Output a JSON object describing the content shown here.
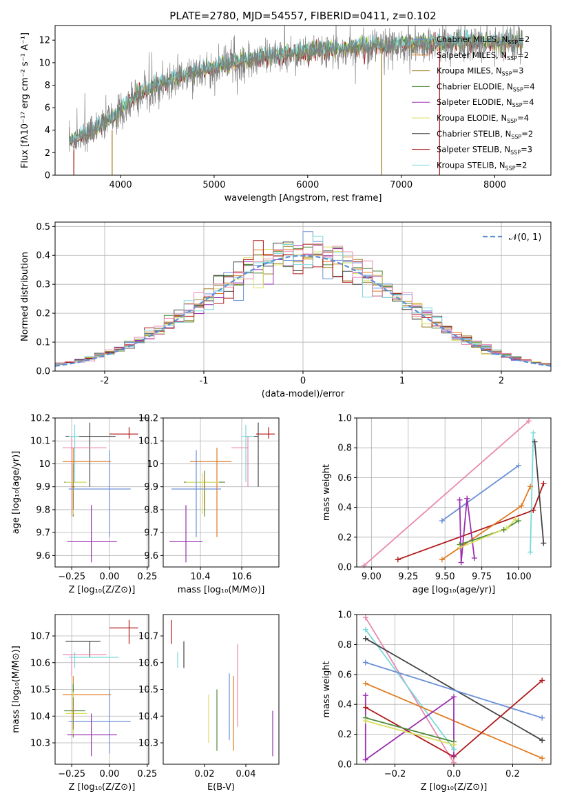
{
  "colors": {
    "chab_miles": "#6a8fd8",
    "salp_miles": "#e07b20",
    "krou_miles": "#9a7a18",
    "chab_elodie": "#4e8a3a",
    "salp_elodie": "#9a30b0",
    "krou_elodie": "#d8e060",
    "chab_stelib": "#444444",
    "salp_stelib": "#b01818",
    "krou_stelib": "#7ad8dc",
    "pink": "#e888b0",
    "gaussian": "#5b8fd9",
    "data": "#7f7f7f",
    "grid": "#b0b0b0"
  },
  "chart_data": [
    {
      "id": "spectrum",
      "type": "line",
      "title": "PLATE=2780, MJD=54557, FIBERID=0411, z=0.102",
      "xlabel": "wavelength [Angstrom, rest frame]",
      "ylabel": "Flux [fλ10⁻¹⁷ erg cm⁻² s⁻¹ A⁻¹]",
      "xlim": [
        3300,
        8600
      ],
      "ylim": [
        0,
        13.3
      ],
      "xticks": [
        4000,
        5000,
        6000,
        7000,
        8000
      ],
      "yticks": [
        0,
        2,
        4,
        6,
        8,
        10,
        12
      ],
      "grid": false,
      "legend_position": "upper-right",
      "legend": [
        {
          "label": "Chabrier MILES, N",
          "sub": "SSP",
          "tail": "=2",
          "color_key": "chab_miles"
        },
        {
          "label": "Salpeter MILES, N",
          "sub": "SSP",
          "tail": "=2",
          "color_key": "salp_miles"
        },
        {
          "label": "Kroupa MILES, N",
          "sub": "SSP",
          "tail": "=3",
          "color_key": "krou_miles"
        },
        {
          "label": "Chabrier ELODIE, N",
          "sub": "SSP",
          "tail": "=4",
          "color_key": "chab_elodie"
        },
        {
          "label": "Salpeter ELODIE, N",
          "sub": "SSP",
          "tail": "=4",
          "color_key": "salp_elodie"
        },
        {
          "label": "Kroupa ELODIE, N",
          "sub": "SSP",
          "tail": "=4",
          "color_key": "krou_elodie"
        },
        {
          "label": "Chabrier STELIB, N",
          "sub": "SSP",
          "tail": "=2",
          "color_key": "chab_stelib"
        },
        {
          "label": "Salpeter STELIB, N",
          "sub": "SSP",
          "tail": "=3",
          "color_key": "salp_stelib"
        },
        {
          "label": "Kroupa STELIB, N",
          "sub": "SSP",
          "tail": "=2",
          "color_key": "krou_stelib"
        }
      ],
      "continuum": {
        "x": [
          3450,
          3600,
          3800,
          3950,
          4050,
          4200,
          4400,
          4600,
          4800,
          5000,
          5200,
          5500,
          5800,
          6100,
          6400,
          6700,
          7000,
          7300,
          7600,
          8000,
          8300
        ],
        "y": [
          2.9,
          3.4,
          4.3,
          5.2,
          6.2,
          7.1,
          7.9,
          8.5,
          9.0,
          9.5,
          9.9,
          10.3,
          10.7,
          11.0,
          11.2,
          11.4,
          11.5,
          11.6,
          11.7,
          11.7,
          11.7
        ]
      },
      "spikes": [
        {
          "x": 3500,
          "y0": 0,
          "y1": 2.2,
          "color_key": "salp_stelib"
        },
        {
          "x": 3910,
          "y0": 0,
          "y1": 4.0,
          "color_key": "krou_miles"
        },
        {
          "x": 6790,
          "y0": 0,
          "y1": 11.4,
          "color_key": "krou_miles"
        },
        {
          "x": 7410,
          "y0": 0,
          "y1": 11.3,
          "color_key": "salp_stelib"
        }
      ]
    },
    {
      "id": "residuals",
      "type": "histogram",
      "xlabel": "(data-model)/error",
      "ylabel": "Normed distribution",
      "xlim": [
        -2.5,
        2.5
      ],
      "ylim": [
        0,
        0.515
      ],
      "xticks": [
        -2,
        -1,
        0,
        1,
        2
      ],
      "yticks": [
        0.0,
        0.1,
        0.2,
        0.3,
        0.4,
        0.5
      ],
      "grid": true,
      "legend_position": "upper-right",
      "legend": [
        {
          "label": "𝒩(0, 1)",
          "color_key": "gaussian",
          "dashed": true
        }
      ],
      "bin_width": 0.1
    },
    {
      "id": "age-vs-Z",
      "type": "scatter",
      "xlabel": "Z [log₁₀(Z/Z⊙)]",
      "ylabel": "age  [log₁₀(age/yr)]",
      "xlim": [
        -0.36,
        0.26
      ],
      "ylim": [
        9.55,
        10.2
      ],
      "xticks": [
        -0.25,
        0.0,
        0.25
      ],
      "xticklabels": [
        "−0.25",
        "0.00",
        "0.25"
      ],
      "yticks": [
        9.6,
        9.7,
        9.8,
        9.9,
        10.0,
        10.1,
        10.2
      ],
      "grid": true,
      "points": [
        {
          "x": -0.13,
          "y": 10.12,
          "xerr": [
            0.16,
            0.17
          ],
          "yerr": [
            0.22,
            0.06
          ],
          "color_key": "chab_stelib"
        },
        {
          "x": 0.13,
          "y": 10.13,
          "xerr": [
            0.13,
            0.06
          ],
          "yerr": [
            0.02,
            0.03
          ],
          "color_key": "salp_stelib"
        },
        {
          "x": -0.23,
          "y": 10.12,
          "xerr": [
            0.04,
            0.03
          ],
          "yerr": [
            0.2,
            0.05
          ],
          "color_key": "krou_stelib"
        },
        {
          "x": -0.25,
          "y": 10.07,
          "xerr": [
            0.06,
            0.23
          ],
          "yerr": [
            0.3,
            0.05
          ],
          "color_key": "pink"
        },
        {
          "x": -0.24,
          "y": 10.01,
          "xerr": [
            0.07,
            0.25
          ],
          "yerr": [
            0.23,
            0.06
          ],
          "color_key": "salp_miles"
        },
        {
          "x": -0.24,
          "y": 9.92,
          "xerr": [
            0.06,
            0.08
          ],
          "yerr": [
            0.15,
            0.05
          ],
          "color_key": "chab_elodie"
        },
        {
          "x": -0.24,
          "y": 9.92,
          "xerr": [
            0.05,
            0.09
          ],
          "yerr": [
            0.14,
            0.04
          ],
          "color_key": "krou_elodie"
        },
        {
          "x": -0.24,
          "y": 9.9,
          "xerr": [
            0.01,
            0.01
          ],
          "yerr": [
            0.1,
            0.1
          ],
          "color_key": "krou_miles"
        },
        {
          "x": -0.0,
          "y": 9.89,
          "xerr": [
            0.27,
            0.14
          ],
          "yerr": [
            0.21,
            0.17
          ],
          "color_key": "chab_miles"
        },
        {
          "x": -0.12,
          "y": 9.66,
          "xerr": [
            0.16,
            0.17
          ],
          "yerr": [
            0.09,
            0.16
          ],
          "color_key": "salp_elodie"
        }
      ]
    },
    {
      "id": "age-vs-mass",
      "type": "scatter",
      "xlabel": "mass [log₁₀(M/M⊙)]",
      "ylabel": "",
      "xlim": [
        10.22,
        10.78
      ],
      "ylim": [
        9.55,
        10.2
      ],
      "xticks": [
        10.4,
        10.6
      ],
      "yticks": [
        9.6,
        9.7,
        9.8,
        9.9,
        10.0,
        10.1,
        10.2
      ],
      "grid": true,
      "points": [
        {
          "x": 10.68,
          "y": 10.12,
          "xerr": [
            0.06,
            0.0
          ],
          "yerr": [
            0.22,
            0.06
          ],
          "color_key": "chab_stelib"
        },
        {
          "x": 10.73,
          "y": 10.13,
          "xerr": [
            0.06,
            0.03
          ],
          "yerr": [
            0.02,
            0.03
          ],
          "color_key": "salp_stelib"
        },
        {
          "x": 10.62,
          "y": 10.12,
          "xerr": [
            0.02,
            0.04
          ],
          "yerr": [
            0.2,
            0.05
          ],
          "color_key": "krou_stelib"
        },
        {
          "x": 10.63,
          "y": 10.07,
          "xerr": [
            0.08,
            0.0
          ],
          "yerr": [
            0.17,
            0.05
          ],
          "color_key": "pink"
        },
        {
          "x": 10.48,
          "y": 10.01,
          "xerr": [
            0.13,
            0.07
          ],
          "yerr": [
            0.33,
            0.06
          ],
          "color_key": "salp_miles"
        },
        {
          "x": 10.42,
          "y": 9.92,
          "xerr": [
            0.1,
            0.1
          ],
          "yerr": [
            0.15,
            0.05
          ],
          "color_key": "chab_elodie"
        },
        {
          "x": 10.41,
          "y": 9.92,
          "xerr": [
            0.08,
            0.08
          ],
          "yerr": [
            0.14,
            0.04
          ],
          "color_key": "krou_elodie"
        },
        {
          "x": 10.42,
          "y": 9.9,
          "xerr": [
            0.0,
            0.0
          ],
          "yerr": [
            0.1,
            0.05
          ],
          "color_key": "krou_miles"
        },
        {
          "x": 10.38,
          "y": 9.89,
          "xerr": [
            0.12,
            0.12
          ],
          "yerr": [
            0.21,
            0.17
          ],
          "color_key": "chab_miles"
        },
        {
          "x": 10.33,
          "y": 9.66,
          "xerr": [
            0.08,
            0.08
          ],
          "yerr": [
            0.09,
            0.16
          ],
          "color_key": "salp_elodie"
        }
      ]
    },
    {
      "id": "weight-vs-age",
      "type": "line",
      "xlabel": "age  [log₁₀(age/yr)]",
      "ylabel": "mass weight",
      "xlim": [
        8.9,
        10.22
      ],
      "ylim": [
        0.0,
        1.0
      ],
      "xticks": [
        9.0,
        9.25,
        9.5,
        9.75,
        10.0
      ],
      "xticklabels": [
        "9.00",
        "9.25",
        "9.50",
        "9.75",
        "10.00"
      ],
      "yticks": [
        0.0,
        0.2,
        0.4,
        0.6,
        0.8,
        1.0
      ],
      "grid": true,
      "series": [
        {
          "color_key": "pink",
          "x": [
            8.95,
            10.07
          ],
          "y": [
            0.01,
            0.98
          ]
        },
        {
          "color_key": "chab_miles",
          "x": [
            9.48,
            10.0
          ],
          "y": [
            0.31,
            0.68
          ]
        },
        {
          "color_key": "salp_stelib",
          "x": [
            9.18,
            10.1,
            10.17
          ],
          "y": [
            0.05,
            0.38,
            0.56
          ]
        },
        {
          "color_key": "salp_miles",
          "x": [
            9.48,
            10.02,
            10.08
          ],
          "y": [
            0.05,
            0.41,
            0.54
          ]
        },
        {
          "color_key": "chab_stelib",
          "x": [
            10.11,
            10.17
          ],
          "y": [
            0.84,
            0.16
          ]
        },
        {
          "color_key": "krou_stelib",
          "x": [
            10.08,
            10.1
          ],
          "y": [
            0.1,
            0.9
          ]
        },
        {
          "color_key": "salp_elodie",
          "x": [
            9.6,
            9.61,
            9.65,
            9.7
          ],
          "y": [
            0.45,
            0.03,
            0.46,
            0.06
          ]
        },
        {
          "color_key": "chab_elodie",
          "x": [
            9.6,
            9.9,
            10.0
          ],
          "y": [
            0.15,
            0.25,
            0.31
          ]
        },
        {
          "color_key": "krou_elodie",
          "x": [
            9.6,
            9.92,
            9.98
          ],
          "y": [
            0.13,
            0.26,
            0.32
          ]
        }
      ]
    },
    {
      "id": "mass-vs-Z",
      "type": "scatter",
      "xlabel": "Z [log₁₀(Z/Z⊙)]",
      "ylabel": "mass [log₁₀(M/M⊙)]",
      "xlim": [
        -0.36,
        0.26
      ],
      "ylim": [
        10.22,
        10.78
      ],
      "xticks": [
        -0.25,
        0.0,
        0.25
      ],
      "xticklabels": [
        "−0.25",
        "0.00",
        "0.25"
      ],
      "yticks": [
        10.3,
        10.4,
        10.5,
        10.6,
        10.7
      ],
      "grid": true,
      "points": [
        {
          "x": 0.13,
          "y": 10.73,
          "xerr": [
            0.13,
            0.06
          ],
          "yerr": [
            0.06,
            0.03
          ],
          "color_key": "salp_stelib"
        },
        {
          "x": -0.13,
          "y": 10.68,
          "xerr": [
            0.16,
            0.07
          ],
          "yerr": [
            0.06,
            0.0
          ],
          "color_key": "chab_stelib"
        },
        {
          "x": -0.25,
          "y": 10.63,
          "xerr": [
            0.06,
            0.23
          ],
          "yerr": [
            0.08,
            0.0
          ],
          "color_key": "pink"
        },
        {
          "x": -0.23,
          "y": 10.62,
          "xerr": [
            0.04,
            0.29
          ],
          "yerr": [
            0.04,
            0.02
          ],
          "color_key": "krou_stelib"
        },
        {
          "x": -0.24,
          "y": 10.48,
          "xerr": [
            0.07,
            0.25
          ],
          "yerr": [
            0.13,
            0.07
          ],
          "color_key": "salp_miles"
        },
        {
          "x": -0.24,
          "y": 10.42,
          "xerr": [
            0.06,
            0.08
          ],
          "yerr": [
            0.1,
            0.1
          ],
          "color_key": "chab_elodie"
        },
        {
          "x": -0.24,
          "y": 10.41,
          "xerr": [
            0.05,
            0.09
          ],
          "yerr": [
            0.08,
            0.08
          ],
          "color_key": "krou_elodie"
        },
        {
          "x": -0.24,
          "y": 10.42,
          "xerr": [
            0.01,
            0.01
          ],
          "yerr": [
            0.07,
            0.05
          ],
          "color_key": "krou_miles"
        },
        {
          "x": -0.0,
          "y": 10.38,
          "xerr": [
            0.27,
            0.14
          ],
          "yerr": [
            0.12,
            0.12
          ],
          "color_key": "chab_miles"
        },
        {
          "x": -0.12,
          "y": 10.33,
          "xerr": [
            0.16,
            0.17
          ],
          "yerr": [
            0.08,
            0.08
          ],
          "color_key": "salp_elodie"
        }
      ]
    },
    {
      "id": "mass-vs-ebv",
      "type": "scatter",
      "xlabel": "E(B-V)",
      "ylabel": "",
      "xlim": [
        0.0,
        0.056
      ],
      "ylim": [
        10.22,
        10.78
      ],
      "xticks": [
        0.02,
        0.04
      ],
      "yticks": [
        10.3,
        10.4,
        10.5,
        10.6,
        10.7
      ],
      "grid": false,
      "points": [
        {
          "x": 0.004,
          "y": 10.73,
          "yerr": [
            0.06,
            0.03
          ],
          "color_key": "salp_stelib"
        },
        {
          "x": 0.007,
          "y": 10.62,
          "yerr": [
            0.04,
            0.02
          ],
          "color_key": "krou_stelib"
        },
        {
          "x": 0.01,
          "y": 10.63,
          "yerr": [
            0.05,
            0.05
          ],
          "color_key": "chab_stelib"
        },
        {
          "x": 0.022,
          "y": 10.39,
          "yerr": [
            0.09,
            0.09
          ],
          "color_key": "krou_elodie"
        },
        {
          "x": 0.026,
          "y": 10.4,
          "yerr": [
            0.13,
            0.1
          ],
          "color_key": "chab_elodie"
        },
        {
          "x": 0.032,
          "y": 10.44,
          "yerr": [
            0.13,
            0.12
          ],
          "color_key": "chab_miles"
        },
        {
          "x": 0.034,
          "y": 10.42,
          "yerr": [
            0.15,
            0.13
          ],
          "color_key": "salp_miles"
        },
        {
          "x": 0.036,
          "y": 10.52,
          "yerr": [
            0.16,
            0.15
          ],
          "color_key": "pink"
        },
        {
          "x": 0.053,
          "y": 10.33,
          "yerr": [
            0.08,
            0.09
          ],
          "color_key": "salp_elodie"
        }
      ]
    },
    {
      "id": "weight-vs-Z",
      "type": "line",
      "xlabel": "Z [log₁₀(Z/Z⊙)]",
      "ylabel": "mass weight",
      "xlim": [
        -0.33,
        0.33
      ],
      "ylim": [
        0.0,
        1.0
      ],
      "xticks": [
        -0.2,
        0.0,
        0.2
      ],
      "xticklabels": [
        "−0.2",
        "0.0",
        "0.2"
      ],
      "yticks": [
        0.0,
        0.2,
        0.4,
        0.6,
        0.8,
        1.0
      ],
      "grid": true,
      "series": [
        {
          "color_key": "pink",
          "x": [
            -0.3,
            0.0
          ],
          "y": [
            0.98,
            0.01
          ]
        },
        {
          "color_key": "krou_stelib",
          "x": [
            -0.3,
            0.0
          ],
          "y": [
            0.9,
            0.1
          ]
        },
        {
          "color_key": "chab_stelib",
          "x": [
            -0.3,
            0.3
          ],
          "y": [
            0.84,
            0.16
          ]
        },
        {
          "color_key": "chab_miles",
          "x": [
            -0.3,
            0.3
          ],
          "y": [
            0.68,
            0.31
          ]
        },
        {
          "color_key": "salp_miles",
          "x": [
            -0.3,
            0.3
          ],
          "y": [
            0.54,
            0.04
          ]
        },
        {
          "color_key": "salp_stelib",
          "x": [
            -0.3,
            0.0,
            0.3
          ],
          "y": [
            0.38,
            0.05,
            0.56
          ]
        },
        {
          "color_key": "salp_elodie",
          "x": [
            -0.3,
            -0.3,
            0.0,
            0.0
          ],
          "y": [
            0.46,
            0.03,
            0.45,
            0.06
          ]
        },
        {
          "color_key": "chab_elodie",
          "x": [
            -0.3,
            0.0
          ],
          "y": [
            0.31,
            0.15
          ]
        },
        {
          "color_key": "krou_elodie",
          "x": [
            -0.3,
            0.0
          ],
          "y": [
            0.29,
            0.13
          ]
        }
      ]
    }
  ]
}
